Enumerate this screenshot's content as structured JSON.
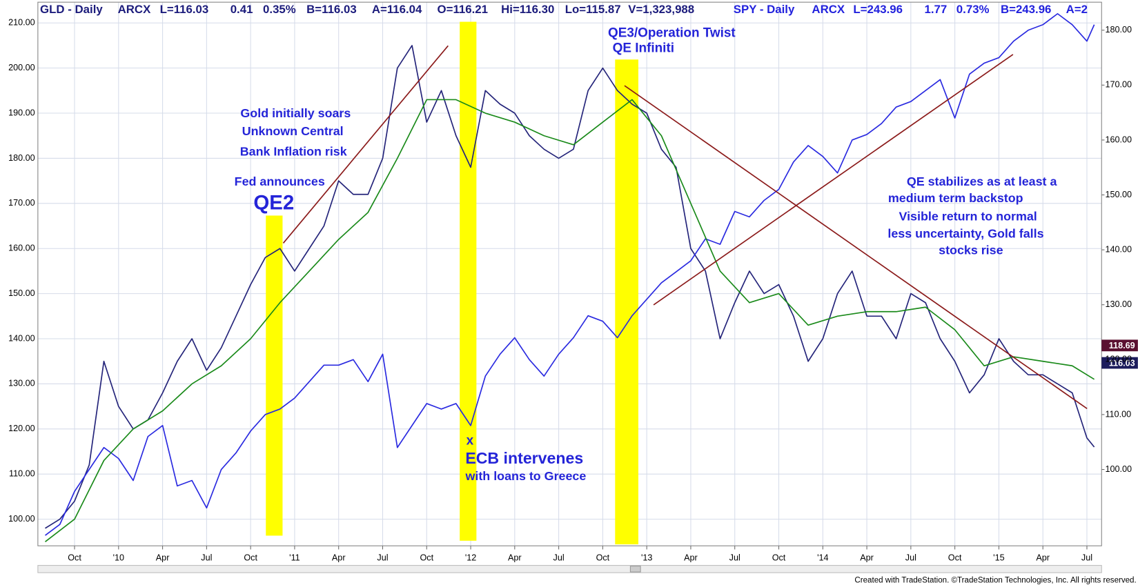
{
  "chart_data": {
    "type": "line",
    "header": [
      "GLD - Daily",
      "ARCX",
      "L=116.03",
      "0.41",
      "0.35%",
      "B=116.03",
      "A=116.04",
      "O=116.21",
      "Hi=116.30",
      "Lo=115.87",
      "V=1,323,988",
      "SPY - Daily",
      "ARCX",
      "L=243.96",
      "1.77",
      "0.73%",
      "B=243.96",
      "A=2"
    ],
    "annotations": [
      "Gold initially soars",
      "Unknown Central",
      "Bank Inflation risk",
      "Fed announces",
      "QE2",
      "x",
      "ECB intervenes",
      "with loans to Greece",
      "QE3/Operation Twist",
      "QE Infiniti",
      "QE stabilizes as at  least a",
      "medium term backstop",
      "Visible return to normal",
      "less uncertainty, Gold falls",
      "stocks rise"
    ],
    "price_labels": [
      "118.69",
      "116.03"
    ],
    "footer": "Created with TradeStation. ©TradeStation Technologies, Inc. All rights reserved.",
    "xlim": [
      0.5,
      73
    ],
    "xticks": [
      {
        "value": 3,
        "label": "Oct"
      },
      {
        "value": 6,
        "label": "'10"
      },
      {
        "value": 9,
        "label": "Apr"
      },
      {
        "value": 12,
        "label": "Jul"
      },
      {
        "value": 15,
        "label": "Oct"
      },
      {
        "value": 18,
        "label": "'11"
      },
      {
        "value": 21,
        "label": "Apr"
      },
      {
        "value": 24,
        "label": "Jul"
      },
      {
        "value": 27,
        "label": "Oct"
      },
      {
        "value": 30,
        "label": "'12"
      },
      {
        "value": 33,
        "label": "Apr"
      },
      {
        "value": 36,
        "label": "Jul"
      },
      {
        "value": 39,
        "label": "Oct"
      },
      {
        "value": 42,
        "label": "'13"
      },
      {
        "value": 45,
        "label": "Apr"
      },
      {
        "value": 48,
        "label": "Jul"
      },
      {
        "value": 51,
        "label": "Oct"
      },
      {
        "value": 54,
        "label": "'14"
      },
      {
        "value": 57,
        "label": "Apr"
      },
      {
        "value": 60,
        "label": "Jul"
      },
      {
        "value": 63,
        "label": "Oct"
      },
      {
        "value": 66,
        "label": "'15"
      },
      {
        "value": 69,
        "label": "Apr"
      },
      {
        "value": 72,
        "label": "Jul"
      }
    ],
    "ylim": [
      94.1,
      214.6
    ],
    "yticks": [
      {
        "value": 100,
        "label": "100.00"
      },
      {
        "value": 110,
        "label": "110.00"
      },
      {
        "value": 120,
        "label": "120.00"
      },
      {
        "value": 130,
        "label": "130.00"
      },
      {
        "value": 140,
        "label": "140.00"
      },
      {
        "value": 150,
        "label": "150.00"
      },
      {
        "value": 160,
        "label": "160.00"
      },
      {
        "value": 170,
        "label": "170.00"
      },
      {
        "value": 180,
        "label": "180.00"
      },
      {
        "value": 190,
        "label": "190.00"
      },
      {
        "value": 200,
        "label": "200.00"
      },
      {
        "value": 210,
        "label": "210.00"
      }
    ],
    "y2lim": [
      86.1,
      185.1
    ],
    "y2ticks": [
      {
        "value": 100,
        "label": "100.00"
      },
      {
        "value": 110,
        "label": "110.00"
      },
      {
        "value": 120,
        "label": "120.00"
      },
      {
        "value": 130,
        "label": "130.00"
      },
      {
        "value": 140,
        "label": "140.00"
      },
      {
        "value": 150,
        "label": "150.00"
      },
      {
        "value": 160,
        "label": "160.00"
      },
      {
        "value": 170,
        "label": "170.00"
      },
      {
        "value": 180,
        "label": "180.00"
      }
    ],
    "grid": true,
    "series": [
      {
        "color": "#24247a",
        "axis": "y",
        "x": [
          1,
          2,
          3,
          4,
          5,
          6,
          7,
          8,
          9,
          10,
          11,
          12,
          13,
          14,
          15,
          16,
          17,
          18,
          19,
          20,
          21,
          22,
          23,
          24,
          25,
          26,
          27,
          28,
          29,
          30,
          31,
          32,
          33,
          34,
          35,
          36,
          37,
          38,
          39,
          40,
          41,
          42,
          43,
          44,
          45,
          46,
          47,
          48,
          49,
          50,
          51,
          52,
          53,
          54,
          55,
          56,
          57,
          58,
          59,
          60,
          61,
          62,
          63,
          64,
          65,
          66,
          67,
          68,
          69,
          70,
          71,
          72,
          72.5
        ],
        "values": [
          98,
          100,
          104,
          112,
          135,
          125,
          120,
          122,
          128,
          135,
          140,
          133,
          138,
          145,
          152,
          158,
          160,
          155,
          160,
          165,
          175,
          172,
          172,
          180,
          200,
          205,
          188,
          195,
          185,
          178,
          195,
          192,
          190,
          185,
          182,
          180,
          182,
          195,
          200,
          195,
          192,
          190,
          182,
          178,
          160,
          155,
          140,
          148,
          155,
          150,
          152,
          145,
          135,
          140,
          150,
          155,
          145,
          145,
          140,
          150,
          148,
          140,
          135,
          128,
          132,
          140,
          135,
          132,
          132,
          130,
          128,
          118,
          116
        ]
      },
      {
        "color": "#2a2ae0",
        "axis": "y2",
        "x": [
          1,
          2,
          3,
          4,
          5,
          6,
          7,
          8,
          9,
          10,
          11,
          12,
          13,
          14,
          15,
          16,
          17,
          18,
          19,
          20,
          21,
          22,
          23,
          24,
          25,
          26,
          27,
          28,
          29,
          30,
          31,
          32,
          33,
          34,
          35,
          36,
          37,
          38,
          39,
          40,
          41,
          42,
          43,
          44,
          45,
          46,
          47,
          48,
          49,
          50,
          51,
          52,
          53,
          54,
          55,
          56,
          57,
          58,
          59,
          60,
          61,
          62,
          63,
          64,
          65,
          66,
          67,
          68,
          69,
          70,
          71,
          72,
          72.5
        ],
        "values": [
          88,
          90,
          96,
          100,
          104,
          102,
          98,
          106,
          108,
          97,
          98,
          93,
          100,
          103,
          107,
          110,
          111,
          113,
          116,
          119,
          119,
          120,
          116,
          121,
          104,
          108,
          112,
          111,
          112,
          108,
          117,
          121,
          124,
          120,
          117,
          121,
          124,
          128,
          127,
          124,
          128,
          131,
          134,
          136,
          138,
          142,
          141,
          147,
          146,
          149,
          151,
          156,
          159,
          157,
          154,
          160,
          161,
          163,
          166,
          167,
          169,
          171,
          164,
          172,
          174,
          175,
          178,
          180,
          181,
          183,
          181,
          178,
          181
        ]
      },
      {
        "color": "#1a8a1a",
        "axis": "y",
        "x": [
          1,
          3,
          5,
          7,
          9,
          11,
          13,
          15,
          17,
          19,
          21,
          23,
          25,
          27,
          29,
          31,
          33,
          35,
          37,
          39,
          41,
          43,
          45,
          47,
          49,
          51,
          53,
          55,
          57,
          59,
          61,
          63,
          65,
          67,
          69,
          71,
          72.5
        ],
        "values": [
          95,
          100,
          113,
          120,
          124,
          130,
          134,
          140,
          148,
          155,
          162,
          168,
          180,
          193,
          193,
          190,
          188,
          185,
          183,
          188,
          193,
          185,
          170,
          155,
          148,
          150,
          143,
          145,
          146,
          146,
          147,
          142,
          134,
          136,
          135,
          134,
          131
        ]
      }
    ]
  }
}
